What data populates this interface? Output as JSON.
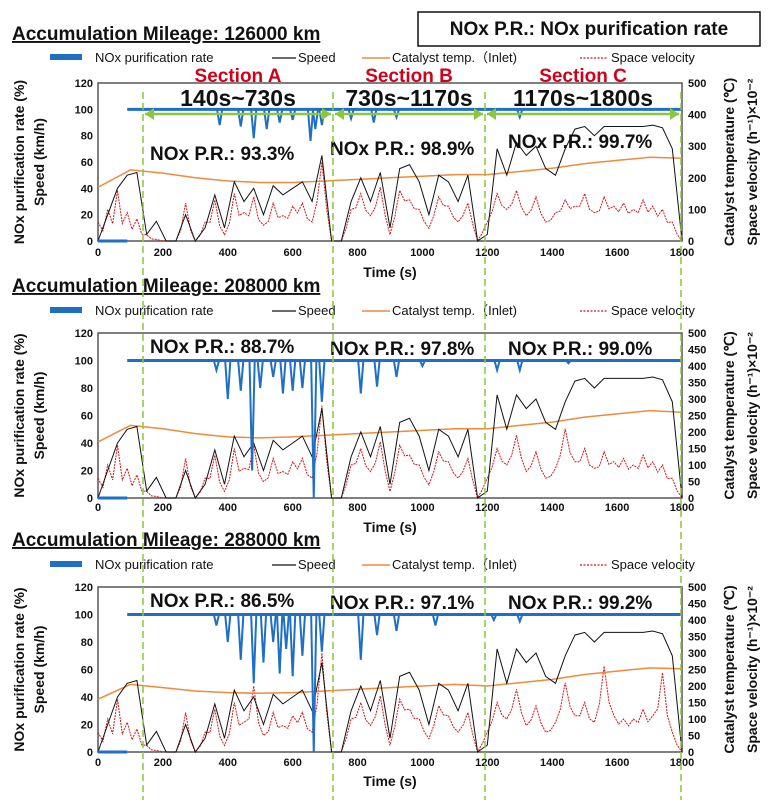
{
  "note_box": "NOx P.R.: NOx purification rate",
  "legend": {
    "nox": "NOx purification rate",
    "speed": "Speed",
    "temp": "Catalyst temp.（Inlet)",
    "sv": "Space velocity"
  },
  "sections": [
    {
      "name": "Section A",
      "range": "140s~730s",
      "start": 140,
      "end": 730
    },
    {
      "name": "Section B",
      "range": "730s~1170s",
      "start": 730,
      "end": 1170
    },
    {
      "name": "Section C",
      "range": "1170s~1800s",
      "start": 1170,
      "end": 1800
    }
  ],
  "colors": {
    "nox": "#1f6fc5",
    "speed": "#111111",
    "temp": "#f08a3c",
    "sv": "#d0161b",
    "guide": "#8cc63f"
  },
  "chart_data": [
    {
      "type": "line",
      "title": "Accumulation Mileage: 126000 km",
      "xlabel": "Time (s)",
      "ylabel_left": [
        "NOx purification rate (%)",
        "Speed (km/h)"
      ],
      "ylabel_right": [
        "Catalyst temperature (℃)",
        "Space velocity (h⁻¹)×10⁻²"
      ],
      "xlim": [
        0,
        1800
      ],
      "xticks": [
        0,
        200,
        400,
        600,
        800,
        1000,
        1200,
        1400,
        1600,
        1800
      ],
      "ylim_left": [
        0,
        120
      ],
      "yticks_left": [
        0,
        20,
        40,
        60,
        80,
        100,
        120
      ],
      "ylim_right": [
        0,
        500
      ],
      "yticks_right": [
        0,
        100,
        200,
        300,
        400,
        500
      ],
      "nox_pr_labels": [
        "NOx P.R.: 93.3%",
        "NOx P.R.: 98.9%",
        "NOx P.R.: 99.7%"
      ],
      "nox_dips": [
        [
          375,
          88
        ],
        [
          440,
          87
        ],
        [
          480,
          78
        ],
        [
          520,
          85
        ],
        [
          560,
          90
        ],
        [
          600,
          92
        ],
        [
          655,
          76
        ],
        [
          670,
          85
        ],
        [
          690,
          88
        ],
        [
          780,
          93
        ],
        [
          850,
          90
        ],
        [
          920,
          94
        ],
        [
          1220,
          97
        ],
        [
          1300,
          94
        ]
      ],
      "speed_step": 30,
      "speed": [
        0,
        20,
        40,
        50,
        52,
        5,
        15,
        0,
        0,
        20,
        0,
        10,
        35,
        10,
        45,
        30,
        40,
        20,
        42,
        35,
        40,
        45,
        30,
        65,
        0,
        0,
        30,
        48,
        30,
        52,
        10,
        55,
        58,
        45,
        20,
        50,
        45,
        30,
        50,
        0,
        5,
        70,
        50,
        75,
        65,
        72,
        55,
        50,
        70,
        85,
        87,
        80,
        87,
        87,
        87,
        87,
        87,
        88,
        86,
        70,
        0
      ],
      "temp_step": 100,
      "temp": [
        170,
        225,
        215,
        200,
        190,
        185,
        185,
        190,
        195,
        200,
        205,
        210,
        210,
        220,
        230,
        245,
        255,
        265,
        262
      ],
      "sv_step": 30,
      "sv": [
        60,
        100,
        160,
        90,
        70,
        20,
        5,
        0,
        0,
        120,
        0,
        60,
        130,
        20,
        150,
        90,
        140,
        50,
        120,
        80,
        110,
        120,
        60,
        250,
        0,
        0,
        100,
        150,
        80,
        170,
        20,
        160,
        130,
        100,
        40,
        140,
        110,
        60,
        120,
        0,
        60,
        150,
        100,
        160,
        80,
        140,
        60,
        90,
        130,
        110,
        150,
        90,
        140,
        110,
        120,
        100,
        130,
        110,
        100,
        60,
        0
      ]
    },
    {
      "type": "line",
      "title": "Accumulation Mileage: 208000 km",
      "xlabel": "Time (s)",
      "ylabel_left": [
        "NOx purification rate (%)",
        "Speed (km/h)"
      ],
      "ylabel_right": [
        "Catalyst temperature (℃)",
        "Space velocity (h⁻¹)×10⁻²"
      ],
      "xlim": [
        0,
        1800
      ],
      "xticks": [
        0,
        200,
        400,
        600,
        800,
        1000,
        1200,
        1400,
        1600,
        1800
      ],
      "ylim_left": [
        0,
        120
      ],
      "yticks_left": [
        0,
        20,
        40,
        60,
        80,
        100,
        120
      ],
      "ylim_right": [
        0,
        500
      ],
      "yticks_right": [
        0,
        50,
        100,
        150,
        200,
        250,
        300,
        350,
        400,
        450,
        500
      ],
      "nox_pr_labels": [
        "NOx P.R.: 88.7%",
        "NOx P.R.: 97.8%",
        "NOx P.R.: 99.0%"
      ],
      "nox_dips": [
        [
          365,
          93
        ],
        [
          400,
          72
        ],
        [
          440,
          78
        ],
        [
          475,
          20
        ],
        [
          500,
          80
        ],
        [
          540,
          88
        ],
        [
          570,
          76
        ],
        [
          600,
          78
        ],
        [
          630,
          80
        ],
        [
          665,
          0
        ],
        [
          690,
          70
        ],
        [
          810,
          76
        ],
        [
          860,
          81
        ],
        [
          920,
          88
        ],
        [
          1000,
          96
        ],
        [
          1230,
          93
        ],
        [
          1300,
          93
        ],
        [
          1450,
          98
        ]
      ],
      "speed_step": 30,
      "speed": [
        0,
        20,
        40,
        50,
        52,
        5,
        15,
        0,
        0,
        20,
        0,
        10,
        35,
        10,
        45,
        30,
        40,
        20,
        42,
        35,
        40,
        45,
        30,
        65,
        0,
        0,
        30,
        48,
        30,
        52,
        10,
        55,
        58,
        45,
        20,
        50,
        45,
        30,
        50,
        0,
        5,
        75,
        50,
        75,
        65,
        72,
        55,
        50,
        70,
        85,
        87,
        80,
        87,
        87,
        87,
        87,
        87,
        88,
        86,
        70,
        0
      ],
      "temp_step": 100,
      "temp": [
        170,
        220,
        210,
        195,
        185,
        182,
        185,
        190,
        195,
        200,
        205,
        210,
        210,
        220,
        230,
        245,
        255,
        265,
        260
      ],
      "sv_step": 30,
      "sv": [
        60,
        100,
        160,
        90,
        70,
        20,
        5,
        0,
        0,
        120,
        0,
        60,
        130,
        20,
        150,
        90,
        160,
        50,
        120,
        80,
        110,
        120,
        60,
        280,
        0,
        0,
        100,
        150,
        80,
        170,
        20,
        160,
        130,
        100,
        40,
        140,
        110,
        60,
        120,
        0,
        60,
        150,
        100,
        190,
        80,
        140,
        60,
        90,
        210,
        110,
        150,
        90,
        140,
        110,
        120,
        100,
        130,
        110,
        100,
        60,
        0
      ]
    },
    {
      "type": "line",
      "title": "Accumulation Mileage: 288000 km",
      "xlabel": "Time (s)",
      "ylabel_left": [
        "NOx purification rate (%)",
        "Speed (km/h)"
      ],
      "ylabel_right": [
        "Catalyst temperature (℃)",
        "Space velocity (h⁻¹)×10⁻²"
      ],
      "xlim": [
        0,
        1800
      ],
      "xticks": [
        0,
        200,
        400,
        600,
        800,
        1000,
        1200,
        1400,
        1600,
        1800
      ],
      "ylim_left": [
        0,
        120
      ],
      "yticks_left": [
        0,
        20,
        40,
        60,
        80,
        100,
        120
      ],
      "ylim_right": [
        0,
        500
      ],
      "yticks_right": [
        0,
        50,
        100,
        150,
        200,
        250,
        300,
        350,
        400,
        450,
        500
      ],
      "nox_pr_labels": [
        "NOx P.R.: 86.5%",
        "NOx P.R.: 97.1%",
        "NOx P.R.: 99.2%"
      ],
      "nox_dips": [
        [
          365,
          92
        ],
        [
          400,
          80
        ],
        [
          440,
          67
        ],
        [
          480,
          50
        ],
        [
          510,
          65
        ],
        [
          540,
          80
        ],
        [
          560,
          57
        ],
        [
          580,
          75
        ],
        [
          600,
          55
        ],
        [
          630,
          70
        ],
        [
          665,
          0
        ],
        [
          690,
          73
        ],
        [
          810,
          67
        ],
        [
          860,
          85
        ],
        [
          920,
          88
        ],
        [
          1040,
          92
        ],
        [
          1220,
          96
        ],
        [
          1300,
          95
        ]
      ],
      "speed_step": 30,
      "speed": [
        0,
        20,
        40,
        50,
        52,
        5,
        15,
        0,
        0,
        20,
        0,
        10,
        35,
        10,
        45,
        30,
        40,
        20,
        42,
        35,
        40,
        45,
        30,
        65,
        0,
        0,
        30,
        48,
        30,
        52,
        10,
        55,
        58,
        45,
        20,
        50,
        45,
        30,
        50,
        0,
        5,
        75,
        50,
        75,
        65,
        72,
        55,
        50,
        70,
        85,
        87,
        80,
        87,
        87,
        87,
        87,
        87,
        88,
        86,
        70,
        0
      ],
      "temp_step": 100,
      "temp": [
        160,
        205,
        195,
        185,
        180,
        178,
        180,
        185,
        190,
        195,
        200,
        205,
        200,
        210,
        220,
        235,
        245,
        255,
        252
      ],
      "sv_step": 30,
      "sv": [
        60,
        100,
        160,
        90,
        70,
        20,
        5,
        0,
        0,
        120,
        0,
        60,
        130,
        20,
        150,
        90,
        200,
        50,
        120,
        80,
        110,
        120,
        60,
        300,
        0,
        0,
        100,
        150,
        80,
        170,
        20,
        160,
        130,
        100,
        40,
        140,
        110,
        60,
        120,
        0,
        60,
        150,
        100,
        190,
        80,
        140,
        60,
        90,
        210,
        110,
        150,
        90,
        260,
        110,
        100,
        100,
        130,
        110,
        240,
        60,
        0
      ]
    }
  ]
}
